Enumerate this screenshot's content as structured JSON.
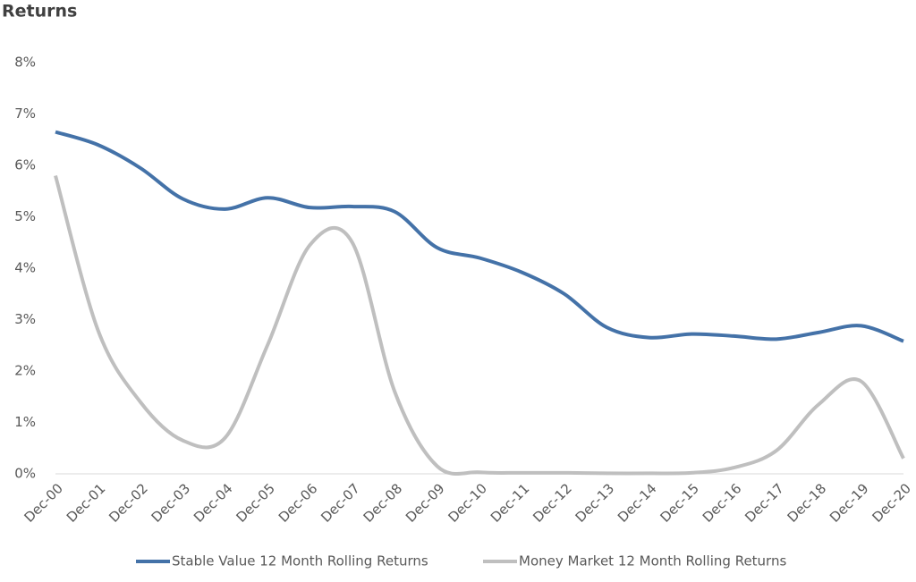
{
  "chart_data": {
    "type": "line",
    "title": "Returns",
    "categories": [
      "Dec-00",
      "Dec-01",
      "Dec-02",
      "Dec-03",
      "Dec-04",
      "Dec-05",
      "Dec-06",
      "Dec-07",
      "Dec-08",
      "Dec-09",
      "Dec-10",
      "Dec-11",
      "Dec-12",
      "Dec-13",
      "Dec-14",
      "Dec-15",
      "Dec-16",
      "Dec-17",
      "Dec-18",
      "Dec-19",
      "Dec-20"
    ],
    "series": [
      {
        "name": "Stable Value 12 Month Rolling Returns",
        "color": "#4472a8",
        "values": [
          6.65,
          6.4,
          5.95,
          5.35,
          5.15,
          5.37,
          5.18,
          5.2,
          5.1,
          4.4,
          4.2,
          3.92,
          3.5,
          2.85,
          2.65,
          2.72,
          2.68,
          2.62,
          2.75,
          2.88,
          2.58
        ]
      },
      {
        "name": "Money Market 12 Month Rolling Returns",
        "color": "#bfbfbf",
        "values": [
          5.8,
          2.8,
          1.4,
          0.65,
          0.7,
          2.5,
          4.45,
          4.5,
          1.6,
          0.15,
          0.03,
          0.02,
          0.02,
          0.01,
          0.01,
          0.02,
          0.12,
          0.45,
          1.35,
          1.8,
          0.3
        ]
      }
    ],
    "ylim": [
      0,
      8
    ],
    "yticks": [
      {
        "value": 0,
        "label": "0%"
      },
      {
        "value": 1,
        "label": "1%"
      },
      {
        "value": 2,
        "label": "2%"
      },
      {
        "value": 3,
        "label": "3%"
      },
      {
        "value": 4,
        "label": "4%"
      },
      {
        "value": 5,
        "label": "5%"
      },
      {
        "value": 6,
        "label": "6%"
      },
      {
        "value": 7,
        "label": "7%"
      },
      {
        "value": 8,
        "label": "8%"
      }
    ],
    "grid": false,
    "legend": "bottom"
  }
}
